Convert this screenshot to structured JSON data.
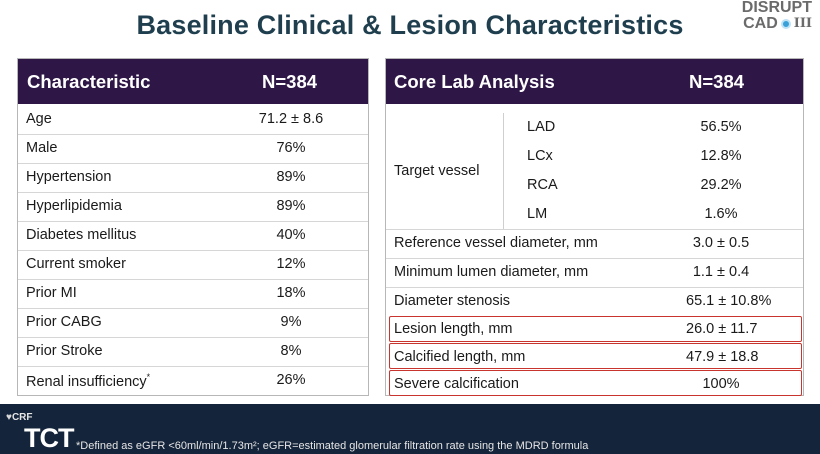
{
  "slide": {
    "title": "Baseline Clinical & Lesion Characteristics"
  },
  "logo": {
    "line1": "DISRUPT",
    "line2": "CAD",
    "roman": "III"
  },
  "left_table": {
    "header": {
      "col1": "Characteristic",
      "col2": "N=384"
    },
    "rows": [
      {
        "label": "Age",
        "value": "71.2 ± 8.6"
      },
      {
        "label": "Male",
        "value": "76%"
      },
      {
        "label": "Hypertension",
        "value": "89%"
      },
      {
        "label": "Hyperlipidemia",
        "value": "89%"
      },
      {
        "label": "Diabetes mellitus",
        "value": "40%"
      },
      {
        "label": "Current smoker",
        "value": "12%"
      },
      {
        "label": "Prior MI",
        "value": "18%"
      },
      {
        "label": "Prior CABG",
        "value": "9%"
      },
      {
        "label": "Prior Stroke",
        "value": "8%"
      },
      {
        "label": "Renal insufficiency",
        "sup": "*",
        "value": "26%"
      }
    ]
  },
  "right_table": {
    "header": {
      "col1": "Core Lab Analysis",
      "col2": "N=384"
    },
    "target_vessel": {
      "label": "Target vessel",
      "items": [
        {
          "label": "LAD",
          "value": "56.5%"
        },
        {
          "label": "LCx",
          "value": "12.8%"
        },
        {
          "label": "RCA",
          "value": "29.2%"
        },
        {
          "label": "LM",
          "value": "1.6%"
        }
      ]
    },
    "rows": [
      {
        "label": "Reference vessel diameter, mm",
        "value": "3.0 ± 0.5"
      },
      {
        "label": "Minimum lumen diameter, mm",
        "value": "1.1 ± 0.4"
      },
      {
        "label": "Diameter stenosis",
        "value": "65.1 ± 10.8%"
      },
      {
        "label": "Lesion length, mm",
        "value": "26.0 ± 11.7"
      },
      {
        "label": "Calcified length, mm",
        "value": "47.9 ± 18.8"
      },
      {
        "label": "Severe calcification",
        "value": "100%"
      }
    ]
  },
  "footer": {
    "crf": "CRF",
    "tct": "TCT",
    "footnote": "*Defined as eGFR <60ml/min/1.73m²; eGFR=estimated glomerular filtration rate using the MDRD formula"
  },
  "colors": {
    "header_bg": "#2e1646",
    "title": "#1f3f4f",
    "highlight": "#c8352f",
    "footer_bg": "#14243a"
  }
}
